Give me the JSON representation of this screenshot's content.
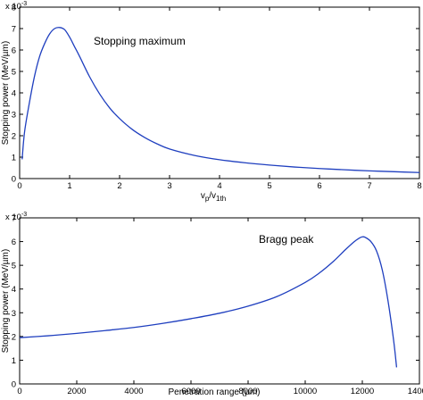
{
  "chart_data": [
    {
      "type": "line",
      "xlabel_main": "v",
      "xlabel_sub1": "p",
      "xlabel_slash": "/v",
      "xlabel_sub2": "1th",
      "ylabel": "Stopping power (MeV/µm)",
      "y_multiplier_base": "x 10",
      "y_multiplier_exp": "-3",
      "annotation": "Stopping maximum",
      "xlim": [
        0,
        8
      ],
      "ylim": [
        0,
        8
      ],
      "xticks": [
        "0",
        "1",
        "2",
        "3",
        "4",
        "5",
        "6",
        "7",
        "8"
      ],
      "yticks": [
        "0",
        "1",
        "2",
        "3",
        "4",
        "5",
        "6",
        "7",
        "8"
      ],
      "line_color": "#1f3fbf",
      "series": [
        {
          "x": [
            0.05,
            0.1,
            0.2,
            0.3,
            0.4,
            0.5,
            0.6,
            0.7,
            0.8,
            0.9,
            1.0,
            1.1,
            1.2,
            1.4,
            1.6,
            1.8,
            2.0,
            2.25,
            2.5,
            2.75,
            3.0,
            3.5,
            4.0,
            4.5,
            5.0,
            5.5,
            6.0,
            6.5,
            7.0,
            7.5,
            8.0
          ],
          "y": [
            0.9,
            2.2,
            3.6,
            4.8,
            5.7,
            6.3,
            6.75,
            7.0,
            7.05,
            6.95,
            6.6,
            6.15,
            5.7,
            4.75,
            3.95,
            3.3,
            2.8,
            2.3,
            1.92,
            1.62,
            1.38,
            1.08,
            0.88,
            0.74,
            0.63,
            0.54,
            0.47,
            0.41,
            0.36,
            0.32,
            0.28
          ]
        }
      ]
    },
    {
      "type": "line",
      "xlabel": "Penetration range (µm)",
      "ylabel": "Stopping power (MeV/µm)",
      "y_multiplier_base": "x 10",
      "y_multiplier_exp": "-3",
      "annotation": "Bragg peak",
      "xlim": [
        0,
        14000
      ],
      "ylim": [
        0,
        7
      ],
      "xticks": [
        "0",
        "2000",
        "4000",
        "6000",
        "8000",
        "10000",
        "12000",
        "14000"
      ],
      "yticks": [
        "0",
        "1",
        "2",
        "3",
        "4",
        "5",
        "6",
        "7"
      ],
      "line_color": "#1f3fbf",
      "series": [
        {
          "x": [
            0,
            1000,
            2000,
            3000,
            4000,
            5000,
            6000,
            7000,
            8000,
            9000,
            10000,
            10500,
            11000,
            11400,
            11700,
            11900,
            12000,
            12100,
            12300,
            12500,
            12700,
            12900,
            13100,
            13200
          ],
          "y": [
            1.95,
            2.03,
            2.13,
            2.25,
            2.38,
            2.55,
            2.75,
            2.98,
            3.28,
            3.68,
            4.28,
            4.68,
            5.18,
            5.65,
            5.98,
            6.15,
            6.2,
            6.18,
            6.0,
            5.6,
            4.8,
            3.5,
            1.8,
            0.7
          ]
        }
      ]
    }
  ]
}
